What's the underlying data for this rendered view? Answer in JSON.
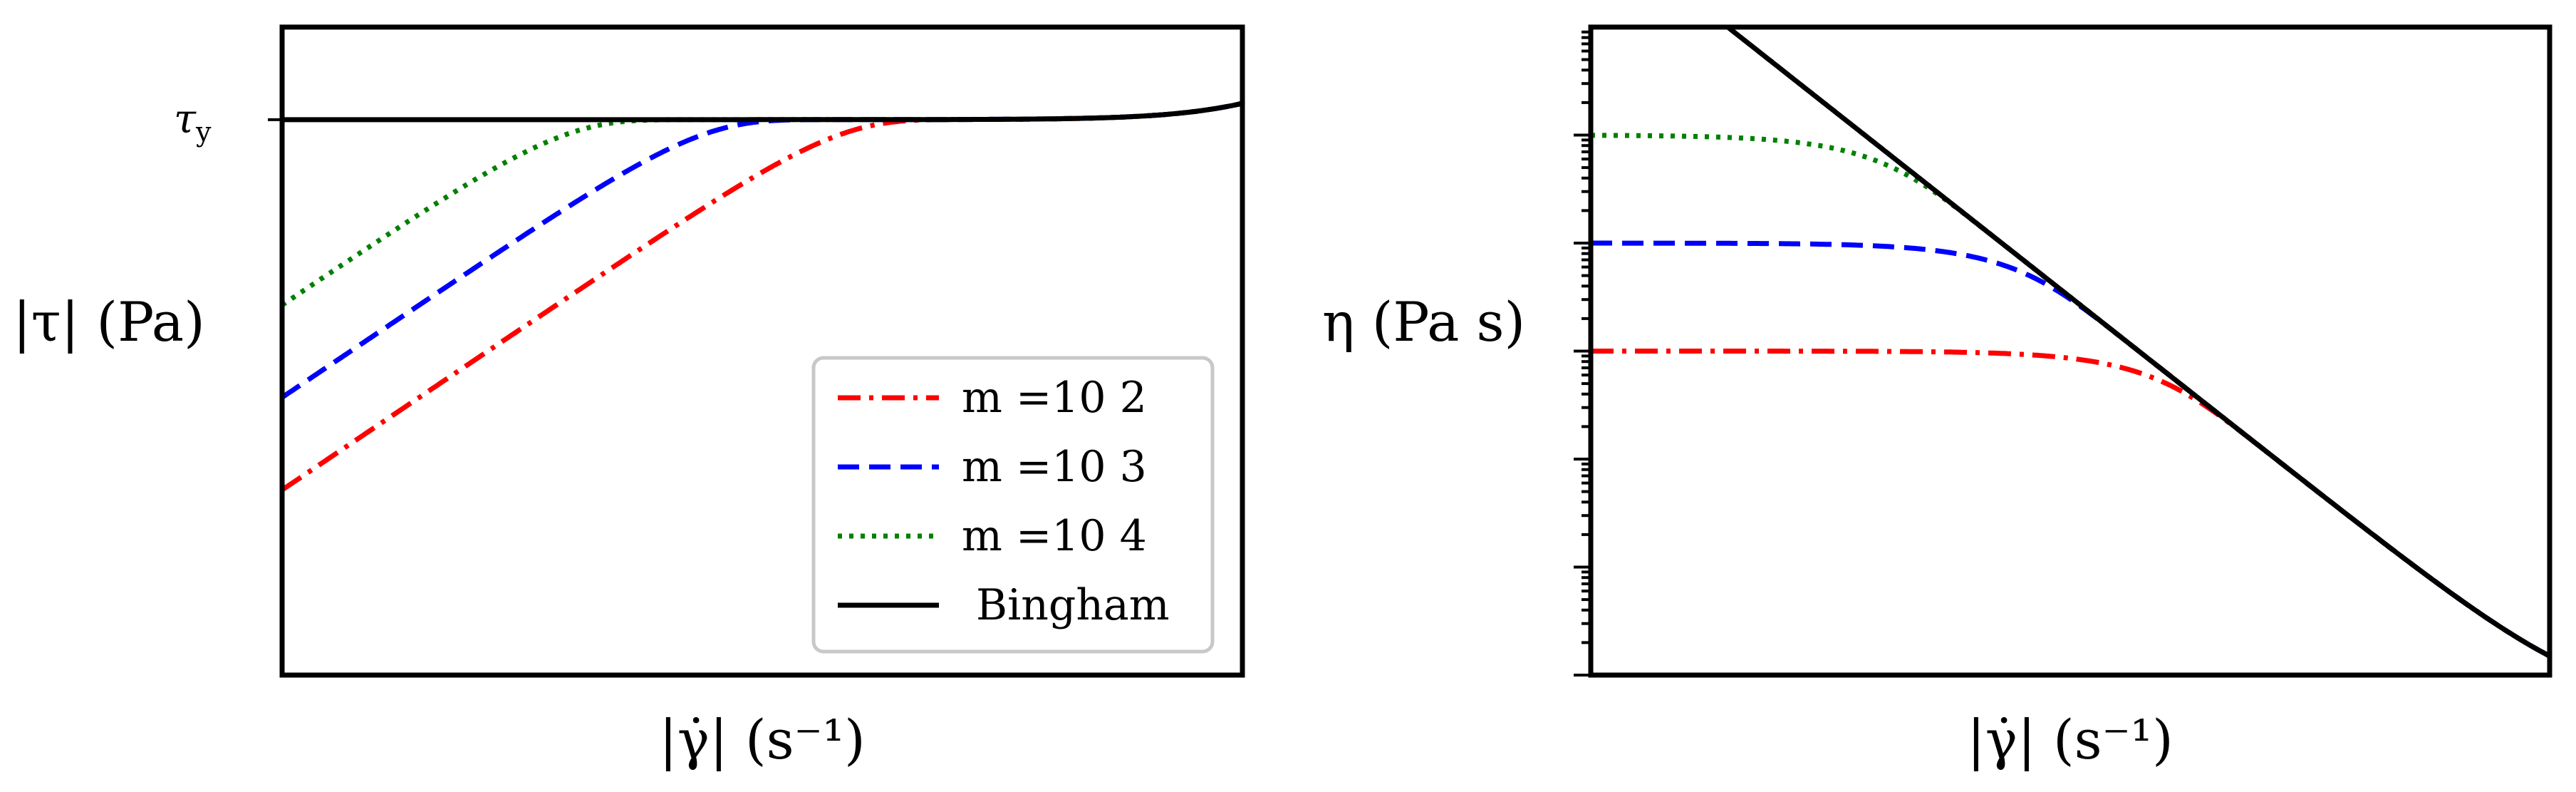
{
  "chart_data": [
    {
      "type": "line",
      "xlabel": "|γ̇| (s⁻¹)",
      "ylabel": "|τ| (Pa)",
      "x_scale": "log",
      "y_scale": "log",
      "x_ticks_shown": false,
      "y_ticks_shown": false,
      "tick_labels": [
        "τy"
      ],
      "reference_level": {
        "label": "τy",
        "value": 1.0
      },
      "legend": {
        "placement": "lower-right"
      },
      "grid": false,
      "xlim": [
        1e-06,
        10
      ],
      "ylim": [
        1e-06,
        10
      ],
      "series": [
        {
          "name": "m =10 2",
          "m": 100,
          "color": "#ff0000",
          "linestyle": "dashdot"
        },
        {
          "name": "m =10 3",
          "m": 1000,
          "color": "#0000ff",
          "linestyle": "dashed"
        },
        {
          "name": "m =10 4",
          "m": 10000,
          "color": "#008000",
          "linestyle": "dotted"
        },
        {
          "name": "Bingham",
          "color": "#000000",
          "linestyle": "solid"
        }
      ]
    },
    {
      "type": "line",
      "xlabel": "|γ̇| (s⁻¹)",
      "ylabel": "η (Pa s)",
      "x_scale": "log",
      "y_scale": "log",
      "x_ticks_shown": false,
      "y_ticks_shown": false,
      "grid": false,
      "xlim": [
        1e-06,
        10
      ],
      "ylim": [
        0.1,
        100000
      ],
      "series": [
        {
          "name": "m =10 2",
          "m": 100,
          "color": "#ff0000",
          "linestyle": "dashdot"
        },
        {
          "name": "m =10 3",
          "m": 1000,
          "color": "#0000ff",
          "linestyle": "dashed"
        },
        {
          "name": "m =10 4",
          "m": 10000,
          "color": "#008000",
          "linestyle": "dotted"
        },
        {
          "name": "Bingham",
          "color": "#000000",
          "linestyle": "solid"
        }
      ]
    }
  ]
}
